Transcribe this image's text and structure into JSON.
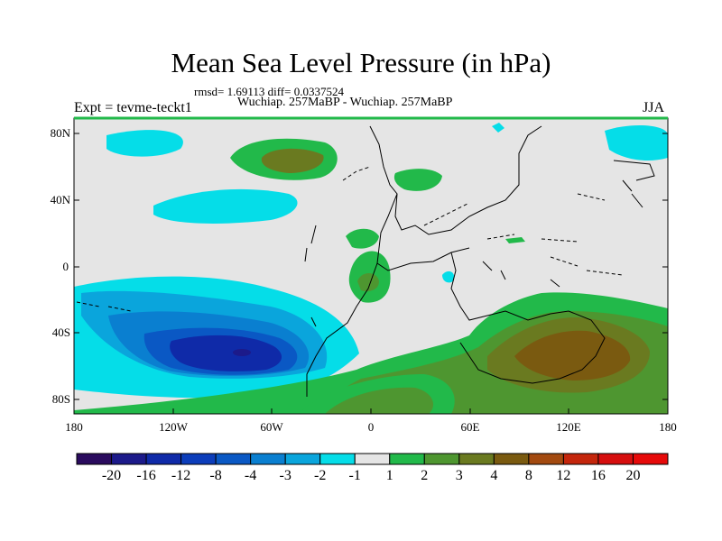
{
  "chart_data": {
    "type": "contour-map",
    "title": "Mean Sea Level Pressure (in hPa)",
    "stats_line": "rmsd= 1.69113 diff= 0.0337524",
    "comparison": "Wuchiap. 257MaBP - Wuchiap. 257MaBP",
    "left_label": "Expt = tevme-teckt1",
    "right_label": "JJA",
    "lat_ticks": [
      "80N",
      "40N",
      "0",
      "40S",
      "80S"
    ],
    "lat_values": [
      80,
      40,
      0,
      -40,
      -80
    ],
    "lon_ticks": [
      "180",
      "120W",
      "60W",
      "0",
      "60E",
      "120E",
      "180"
    ],
    "lon_values": [
      -180,
      -120,
      -60,
      0,
      60,
      120,
      180
    ],
    "xlim": [
      -180,
      180
    ],
    "ylim": [
      -90,
      90
    ],
    "levels": [
      "-20",
      "-16",
      "-12",
      "-8",
      "-4",
      "-3",
      "-2",
      "-1",
      "1",
      "2",
      "3",
      "4",
      "8",
      "12",
      "16",
      "20"
    ],
    "colors": [
      "#2a0b5e",
      "#1c1a8a",
      "#0f2aa8",
      "#0c3dba",
      "#0a58c4",
      "#0a7fd0",
      "#0aa5dc",
      "#05dde8",
      "#e5e5e5",
      "#22b94a",
      "#4e9630",
      "#6a7a20",
      "#7a5a10",
      "#a34a10",
      "#c4260c",
      "#d60e0e",
      "#e60a0a"
    ],
    "anomalies": [
      {
        "lon": -80,
        "lat": -55,
        "value": -16
      },
      {
        "lon": -130,
        "lat": -45,
        "value": -4
      },
      {
        "lon": -170,
        "lat": -65,
        "value": -3
      },
      {
        "lon": -120,
        "lat": 60,
        "value": -2
      },
      {
        "lon": 140,
        "lat": 70,
        "value": -2
      },
      {
        "lon": -50,
        "lat": 65,
        "value": 3
      },
      {
        "lon": 0,
        "lat": -8,
        "value": 3
      },
      {
        "lon": 100,
        "lat": -50,
        "value": 4
      },
      {
        "lon": 10,
        "lat": -70,
        "value": 3
      }
    ]
  }
}
